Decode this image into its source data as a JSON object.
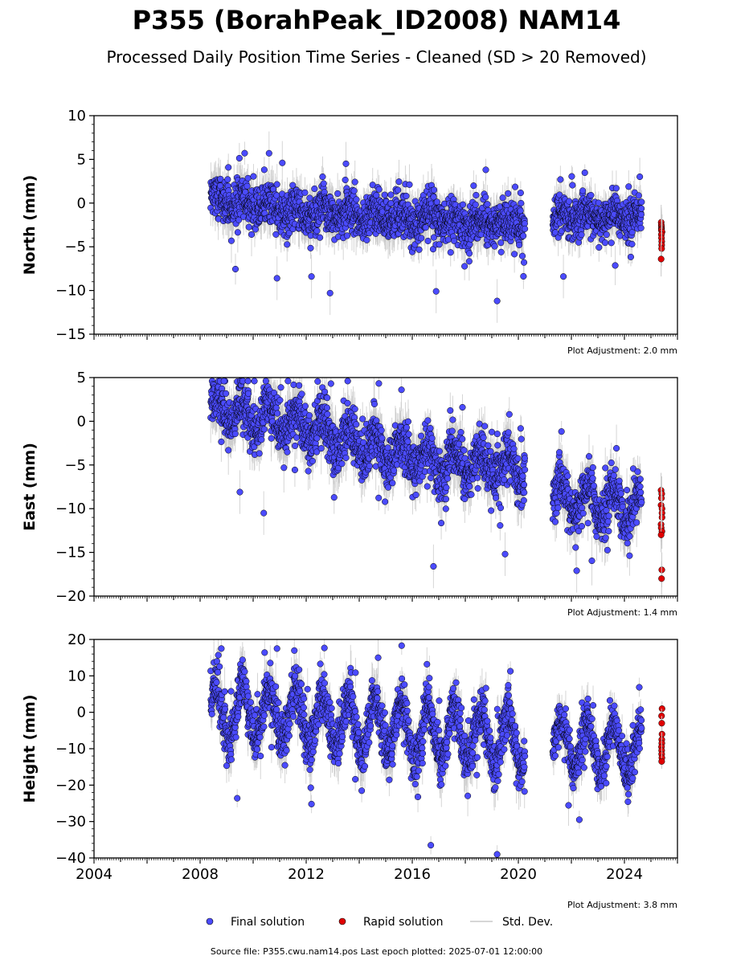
{
  "title": "P355 (BorahPeak_ID2008) NAM14",
  "subtitle": "Processed Daily Position Time Series - Cleaned (SD > 20 Removed)",
  "footer": "Source file: P355.cwu.nam14.pos  Last epoch plotted: 2025-07-01 12:00:00",
  "legend": {
    "final": "Final solution",
    "rapid": "Rapid solution",
    "std": "Std. Dev."
  },
  "colors": {
    "final": "#4b4bff",
    "rapid": "#e00000",
    "std": "#c8c8c8",
    "stroke": "#000000"
  },
  "chart_data": [
    {
      "type": "scatter",
      "ylabel": "North (mm)",
      "ylim": [
        -15,
        10
      ],
      "yticks": [
        10,
        5,
        0,
        -5,
        -10,
        -15
      ],
      "xlim": [
        2004,
        2026
      ],
      "adjustment": "Plot Adjustment: 2.0 mm",
      "show_xtick_labels": false,
      "segments": [
        {
          "start": 2008.4,
          "end": 2020.25,
          "base": [
            [
              2008.4,
              0.5
            ],
            [
              2012,
              -1.0
            ],
            [
              2016,
              -1.8
            ],
            [
              2020.25,
              -2.5
            ]
          ],
          "amp": 0.6,
          "noise": 1.7
        },
        {
          "start": 2021.3,
          "end": 2024.65,
          "base": [
            [
              2021.3,
              -1.5
            ],
            [
              2024.65,
              -1.5
            ]
          ],
          "amp": 0.5,
          "noise": 1.6
        }
      ],
      "rapid": [
        -2.2,
        -2.5,
        -2.7,
        -2.9,
        -3.0,
        -3.1,
        -3.3,
        -3.6,
        -4.0,
        -4.4,
        -4.8,
        -5.2,
        -6.4
      ],
      "outliers": [
        [
          2010.6,
          5.7
        ],
        [
          2011.1,
          4.6
        ],
        [
          2012.9,
          -10.3
        ],
        [
          2013.5,
          4.5
        ],
        [
          2016.9,
          -10.1
        ],
        [
          2019.2,
          -11.2
        ],
        [
          2010.9,
          -8.6
        ],
        [
          2012.2,
          -8.4
        ],
        [
          2021.7,
          -8.4
        ]
      ]
    },
    {
      "type": "scatter",
      "ylabel": "East (mm)",
      "ylim": [
        -20,
        5
      ],
      "yticks": [
        5,
        0,
        -5,
        -10,
        -15,
        -20
      ],
      "xlim": [
        2004,
        2026
      ],
      "adjustment": "Plot Adjustment: 1.4 mm",
      "show_xtick_labels": false,
      "segments": [
        {
          "start": 2008.4,
          "end": 2020.25,
          "base": [
            [
              2008.4,
              1.5
            ],
            [
              2012,
              -0.8
            ],
            [
              2016,
              -4.2
            ],
            [
              2020.25,
              -5.5
            ]
          ],
          "amp": 1.6,
          "noise": 2.0
        },
        {
          "start": 2021.3,
          "end": 2024.65,
          "base": [
            [
              2021.3,
              -8.5
            ],
            [
              2024.65,
              -10.0
            ]
          ],
          "amp": 1.8,
          "noise": 2.0
        }
      ],
      "rapid": [
        -7.9,
        -8.3,
        -8.8,
        -9.6,
        -10.0,
        -10.5,
        -11.0,
        -11.8,
        -12.2,
        -12.6,
        -13.0,
        -17.0,
        -18.0
      ],
      "outliers": [
        [
          2008.9,
          4.6
        ],
        [
          2010.4,
          -10.5
        ],
        [
          2016.8,
          -16.6
        ],
        [
          2019.5,
          -15.2
        ],
        [
          2022.2,
          -17.1
        ],
        [
          2009.5,
          -8.1
        ]
      ]
    },
    {
      "type": "scatter",
      "ylabel": "Height (mm)",
      "ylim": [
        -40,
        20
      ],
      "yticks": [
        20,
        10,
        0,
        -10,
        -20,
        -30,
        -40
      ],
      "xlim": [
        2004,
        2026
      ],
      "xticks": [
        2004,
        2008,
        2012,
        2016,
        2020,
        2024
      ],
      "adjustment": "Plot Adjustment: 3.8 mm",
      "show_xtick_labels": true,
      "segments": [
        {
          "start": 2008.4,
          "end": 2020.25,
          "base": [
            [
              2008.4,
              0.0
            ],
            [
              2012,
              -1.5
            ],
            [
              2016,
              -5.0
            ],
            [
              2020.25,
              -8.0
            ]
          ],
          "amp": 7.5,
          "noise": 4.5
        },
        {
          "start": 2021.3,
          "end": 2024.65,
          "base": [
            [
              2021.3,
              -8.0
            ],
            [
              2024.65,
              -11.0
            ]
          ],
          "amp": 6.5,
          "noise": 4.0
        }
      ],
      "rapid": [
        1.0,
        -1.0,
        -3.0,
        -6.0,
        -7.5,
        -8.5,
        -9.5,
        -10.5,
        -11.5,
        -12.5,
        -13.5
      ],
      "outliers": [
        [
          2008.8,
          17.5
        ],
        [
          2010.9,
          17.5
        ],
        [
          2015.6,
          18.3
        ],
        [
          2016.7,
          -36.5
        ],
        [
          2019.2,
          -39.0
        ],
        [
          2012.2,
          -25.2
        ],
        [
          2009.4,
          -23.6
        ],
        [
          2022.3,
          -29.5
        ]
      ]
    }
  ]
}
